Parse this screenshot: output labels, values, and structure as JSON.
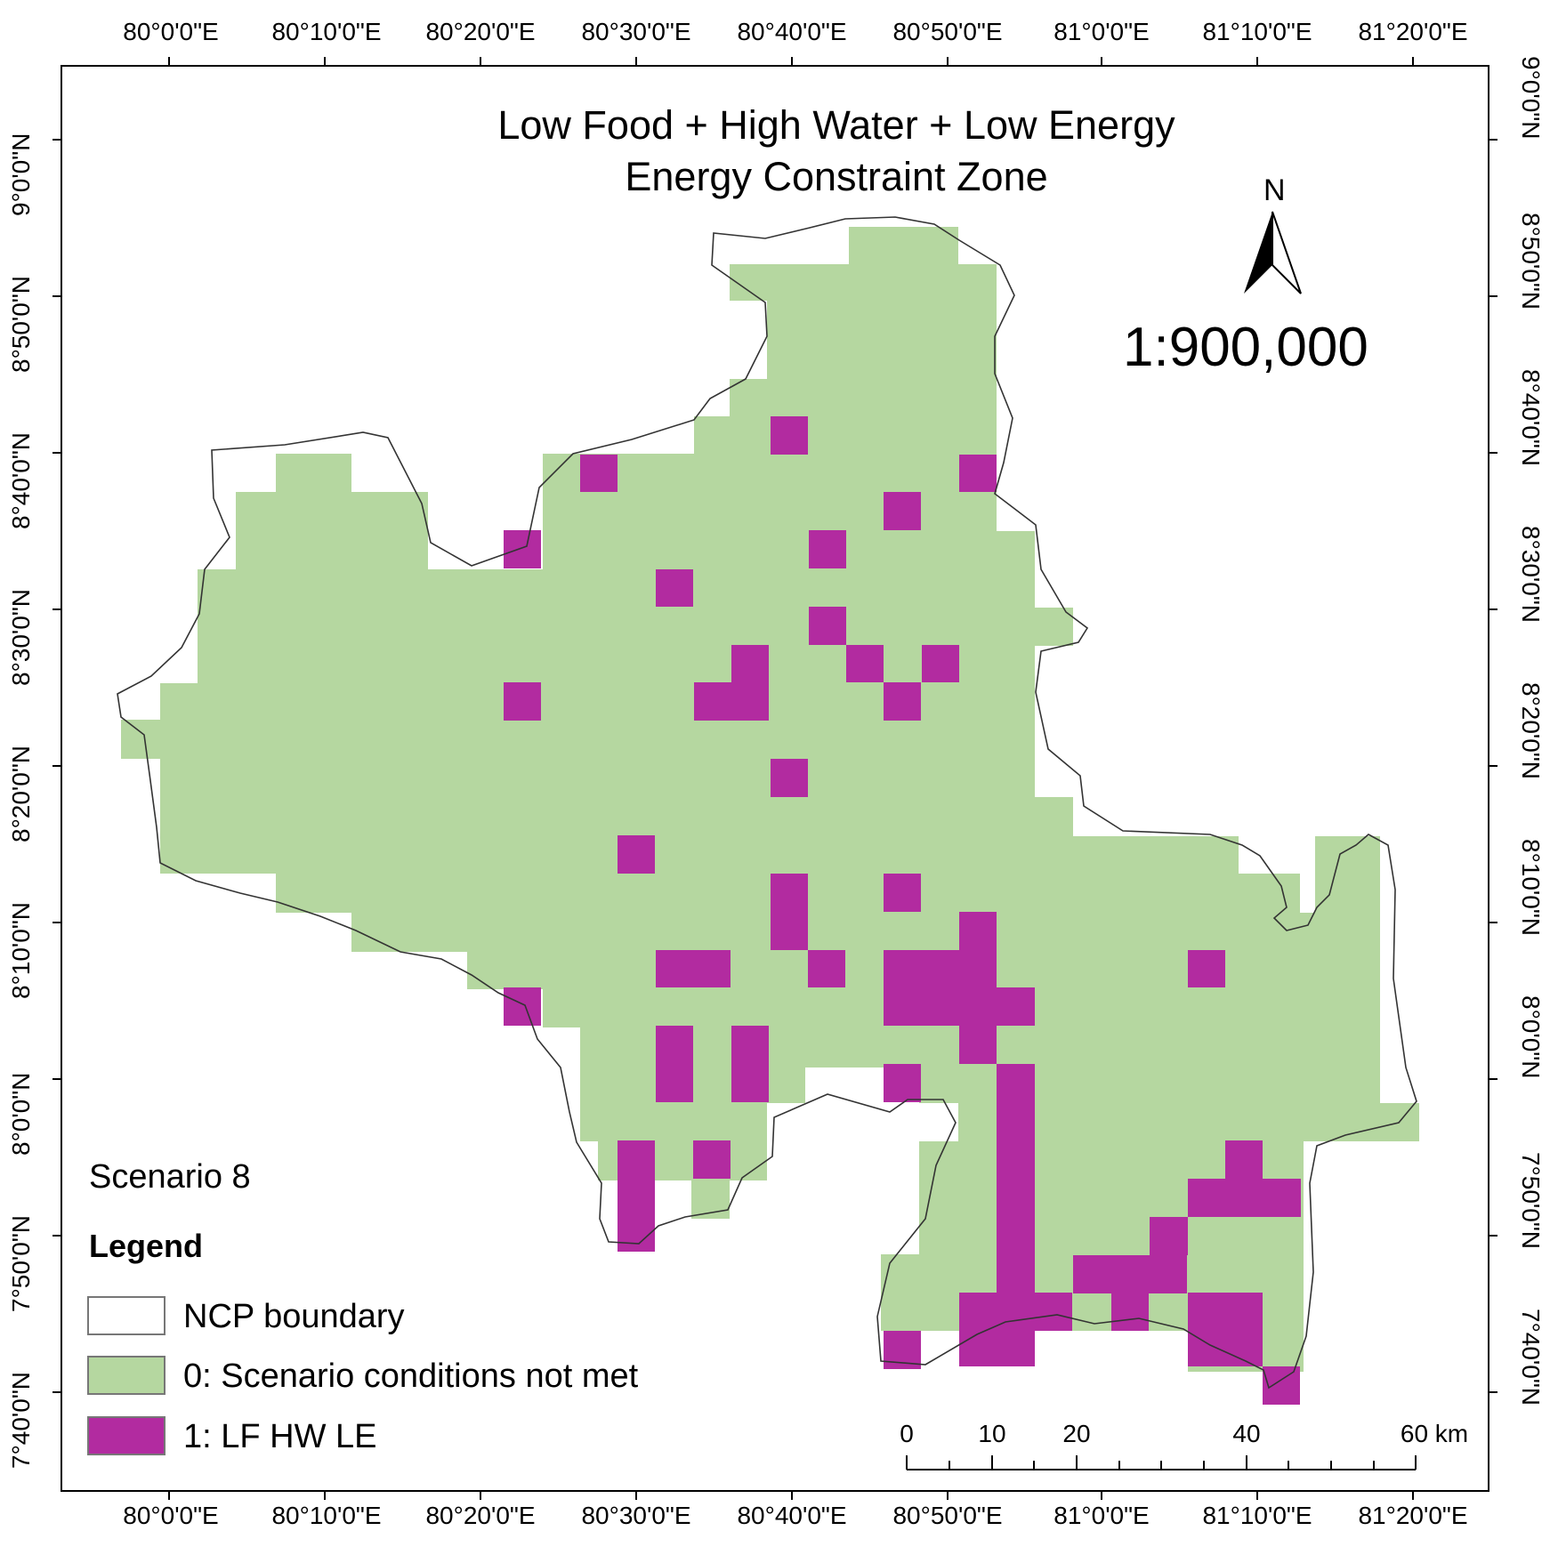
{
  "title": {
    "line1": "Low Food + High Water + Low Energy",
    "line2": "Energy Constraint Zone"
  },
  "north_arrow": {
    "label": "N"
  },
  "scale_ratio": "1:900,000",
  "scenario_label": "Scenario 8",
  "legend": {
    "title": "Legend",
    "items": [
      {
        "label": "NCP boundary",
        "color": "#ffffff"
      },
      {
        "label": "0: Scenario conditions not met",
        "color": "#b5d7a0"
      },
      {
        "label": "1: LF HW LE",
        "color": "#b22ba0"
      }
    ]
  },
  "longitude_labels": [
    "80°0'0\"E",
    "80°10'0\"E",
    "80°20'0\"E",
    "80°30'0\"E",
    "80°40'0\"E",
    "80°50'0\"E",
    "81°0'0\"E",
    "81°10'0\"E",
    "81°20'0\"E"
  ],
  "latitude_labels": [
    "9°0'0\"N",
    "8°50'0\"N",
    "8°40'0\"N",
    "8°30'0\"N",
    "8°20'0\"N",
    "8°10'0\"N",
    "8°0'0\"N",
    "7°50'0\"N",
    "7°40'0\"N"
  ],
  "scale_bar": {
    "labels": [
      "0",
      "10",
      "20",
      "40",
      "60 km"
    ]
  },
  "colors": {
    "met": "#b22ba0",
    "not_met": "#b5d7a0",
    "boundary": "#333333"
  }
}
